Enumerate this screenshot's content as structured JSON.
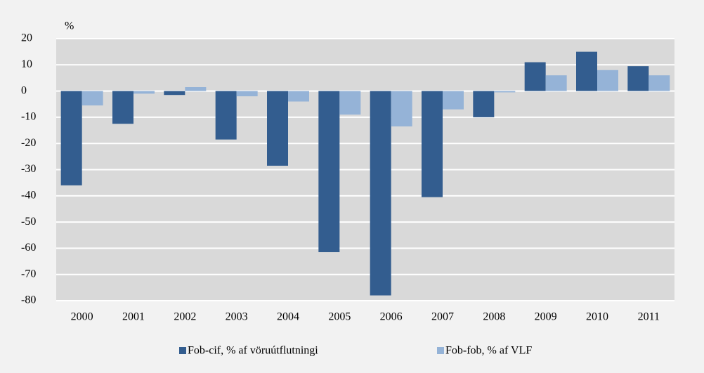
{
  "chart_data": {
    "type": "bar",
    "y_label": "%",
    "categories": [
      "2000",
      "2001",
      "2002",
      "2003",
      "2004",
      "2005",
      "2006",
      "2007",
      "2008",
      "2009",
      "2010",
      "2011"
    ],
    "series": [
      {
        "name": "Fob-cif, % af vöruútflutningi",
        "color": "#335d8f",
        "values": [
          -36,
          -12.5,
          -1.5,
          -18.5,
          -28.5,
          -61.5,
          -78,
          -40.5,
          -10,
          11,
          15,
          9.5
        ]
      },
      {
        "name": "Fob-fob, % af VLF",
        "color": "#95b3d7",
        "values": [
          -5.5,
          -1,
          1.5,
          -2,
          -4,
          -9,
          -13.5,
          -7,
          -0.5,
          6,
          8,
          6
        ]
      }
    ],
    "ylim": [
      -80,
      20
    ],
    "yticks": [
      20,
      10,
      0,
      -10,
      -20,
      -30,
      -40,
      -50,
      -60,
      -70,
      -80
    ],
    "grid": true
  }
}
